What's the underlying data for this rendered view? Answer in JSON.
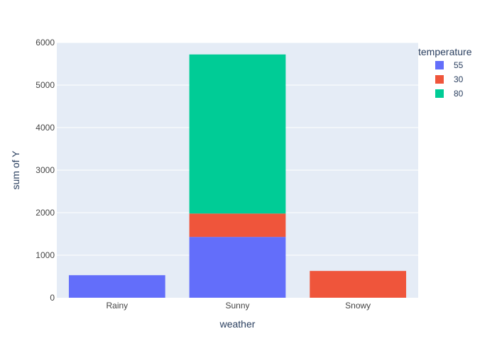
{
  "chart_data": {
    "type": "bar",
    "barmode": "stack",
    "title": "",
    "xlabel": "weather",
    "ylabel": "sum of Y",
    "categories": [
      "Rainy",
      "Sunny",
      "Snowy"
    ],
    "ylim": [
      0,
      6000
    ],
    "yticks": [
      0,
      1000,
      2000,
      3000,
      4000,
      5000,
      6000
    ],
    "grid": true,
    "legend": {
      "title": "temperature",
      "placement": "top-right"
    },
    "series": [
      {
        "name": "55",
        "color": "#636efa",
        "values": [
          530,
          1430,
          0
        ]
      },
      {
        "name": "30",
        "color": "#ef553b",
        "values": [
          0,
          550,
          630
        ]
      },
      {
        "name": "80",
        "color": "#00cc96",
        "values": [
          0,
          3740,
          0
        ]
      }
    ],
    "colors": {
      "plot_background": "#e5ecf6",
      "gridline": "#ffffff",
      "text": "#2a3f5f",
      "tick_text": "#444444"
    }
  }
}
